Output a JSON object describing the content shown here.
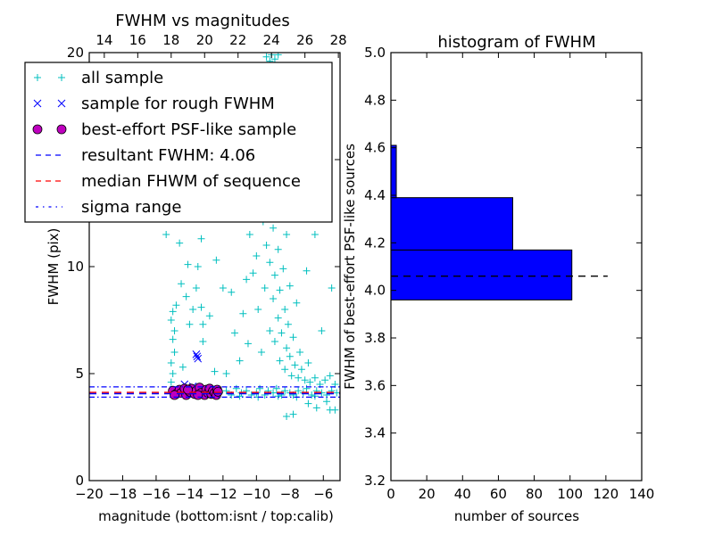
{
  "chart_data": [
    {
      "type": "scatter",
      "title": "FWHM vs magnitudes",
      "xlabel": "magnitude (bottom:isnt / top:calib)",
      "ylabel": "FWHM (pix)",
      "xlim": [
        -20,
        -5
      ],
      "ylim": [
        0,
        20
      ],
      "xticks": [
        -20,
        -18,
        -16,
        -14,
        -12,
        -10,
        -8,
        -6
      ],
      "xtick_labels": [
        "−20",
        "−18",
        "−16",
        "−14",
        "−12",
        "−10",
        "−8",
        "−6"
      ],
      "yticks": [
        0,
        5,
        10,
        15,
        20
      ],
      "ytick_labels": [
        "0",
        "5",
        "10",
        "15",
        "20"
      ],
      "top_xlim": [
        13.1,
        28.1
      ],
      "top_xticks": [
        14,
        16,
        18,
        20,
        22,
        24,
        26,
        28
      ],
      "top_xtick_labels": [
        "14",
        "16",
        "18",
        "20",
        "22",
        "24",
        "26",
        "28"
      ],
      "legend_position": "upper-left",
      "legend": [
        {
          "label": "all sample",
          "marker": "plus",
          "color": "#00bfbf"
        },
        {
          "label": "sample for rough FWHM",
          "marker": "x",
          "color": "#0000ff"
        },
        {
          "label": "best-effort PSF-like sample",
          "marker": "circle",
          "color": "#bf00bf"
        },
        {
          "label": "resultant FWHM: 4.06",
          "line": "dashed",
          "color": "#0000ff"
        },
        {
          "label": "median FHWM of sequence",
          "line": "dashed",
          "color": "#ff0000"
        },
        {
          "label": "sigma range",
          "line": "dashdot",
          "color": "#0000ff"
        }
      ],
      "hlines": {
        "resultant_fwhm": 4.06,
        "median_fwhm": 4.12,
        "sigma_range": [
          3.9,
          4.38
        ]
      },
      "series": [
        {
          "name": "all sample",
          "color": "#00bfbf",
          "marker": "plus",
          "points": [
            [
              -14.9,
              4.1
            ],
            [
              -14.6,
              4.2
            ],
            [
              -14.2,
              4.0
            ],
            [
              -13.8,
              4.3
            ],
            [
              -13.4,
              4.1
            ],
            [
              -13,
              4.2
            ],
            [
              -12.6,
              4.0
            ],
            [
              -12.2,
              4.1
            ],
            [
              -11.8,
              4.2
            ],
            [
              -11.5,
              4.0
            ],
            [
              -11.2,
              4.3
            ],
            [
              -10.9,
              4.1
            ],
            [
              -10.6,
              4.2
            ],
            [
              -10.3,
              4.0
            ],
            [
              -10,
              4.1
            ],
            [
              -9.8,
              4.3
            ],
            [
              -9.5,
              4.0
            ],
            [
              -9.3,
              4.2
            ],
            [
              -9,
              4.1
            ],
            [
              -8.8,
              4.3
            ],
            [
              -8.5,
              4.0
            ],
            [
              -8.3,
              4.2
            ],
            [
              -8,
              4.1
            ],
            [
              -7.8,
              4.0
            ],
            [
              -7.5,
              4.2
            ],
            [
              -7.2,
              4.1
            ],
            [
              -7,
              4.3
            ],
            [
              -6.7,
              4.0
            ],
            [
              -6.4,
              4.2
            ],
            [
              -6.1,
              4.1
            ],
            [
              -5.8,
              4.0
            ],
            [
              -5.5,
              4.2
            ],
            [
              -5.2,
              4.1
            ],
            [
              -11,
              3.95
            ],
            [
              -9.9,
              3.9
            ],
            [
              -8.7,
              3.95
            ],
            [
              -7.6,
              3.9
            ],
            [
              -6.5,
              3.95
            ],
            [
              -15.1,
              4.6
            ],
            [
              -15.0,
              5.0
            ],
            [
              -15.1,
              5.5
            ],
            [
              -14.9,
              6.0
            ],
            [
              -15.0,
              6.6
            ],
            [
              -14.9,
              7.0
            ],
            [
              -15.1,
              7.5
            ],
            [
              -15.0,
              7.9
            ],
            [
              -14.8,
              8.2
            ],
            [
              -15.4,
              11.5
            ],
            [
              -14.5,
              9.2
            ],
            [
              -14.2,
              8.6
            ],
            [
              -14.0,
              7.3
            ],
            [
              -13.8,
              8.0
            ],
            [
              -13.6,
              9.0
            ],
            [
              -13.3,
              8.1
            ],
            [
              -13.2,
              6.5
            ],
            [
              -12.8,
              7.7
            ],
            [
              -12.5,
              5.1
            ],
            [
              -14.1,
              10.1
            ],
            [
              -13.5,
              10.0
            ],
            [
              -14.6,
              11.1
            ],
            [
              -13.3,
              11.3
            ],
            [
              -12.4,
              10.3
            ],
            [
              -14.4,
              5.3
            ],
            [
              -13.2,
              7.3
            ],
            [
              -12.0,
              9.0
            ],
            [
              -11.8,
              5.0
            ],
            [
              -11.5,
              8.8
            ],
            [
              -11.3,
              6.9
            ],
            [
              -10.8,
              7.8
            ],
            [
              -10.5,
              6.4
            ],
            [
              -10.4,
              11.5
            ],
            [
              -10.2,
              9.7
            ],
            [
              -10.0,
              10.5
            ],
            [
              -9.9,
              8.0
            ],
            [
              -9.7,
              6.0
            ],
            [
              -9.6,
              12.1
            ],
            [
              -9.5,
              9.0
            ],
            [
              -9.4,
              11.0
            ],
            [
              -9.3,
              13.0
            ],
            [
              -9.2,
              7.0
            ],
            [
              -9.2,
              10.2
            ],
            [
              -9.1,
              14.1
            ],
            [
              -9.0,
              8.5
            ],
            [
              -9.0,
              11.8
            ],
            [
              -8.9,
              6.5
            ],
            [
              -8.9,
              9.6
            ],
            [
              -8.8,
              12.6
            ],
            [
              -8.8,
              15.3
            ],
            [
              -8.7,
              7.6
            ],
            [
              -8.7,
              10.8
            ],
            [
              -8.6,
              5.6
            ],
            [
              -8.6,
              8.9
            ],
            [
              -8.5,
              13.7
            ],
            [
              -8.5,
              6.9
            ],
            [
              -8.4,
              9.9
            ],
            [
              -8.4,
              16.2
            ],
            [
              -8.3,
              5.2
            ],
            [
              -8.3,
              8.0
            ],
            [
              -8.2,
              11.5
            ],
            [
              -8.2,
              6.2
            ],
            [
              -8.1,
              7.3
            ],
            [
              -8.0,
              5.8
            ],
            [
              -8.0,
              9.1
            ],
            [
              -7.9,
              4.9
            ],
            [
              -7.8,
              6.7
            ],
            [
              -7.7,
              5.4
            ],
            [
              -7.6,
              8.3
            ],
            [
              -7.5,
              4.8
            ],
            [
              -7.4,
              6.0
            ],
            [
              -7.3,
              5.2
            ],
            [
              -7.1,
              4.7
            ],
            [
              -6.9,
              5.5
            ],
            [
              -6.8,
              4.6
            ],
            [
              -6.5,
              4.8
            ],
            [
              -6.2,
              4.5
            ],
            [
              -5.9,
              4.7
            ],
            [
              -5.6,
              4.9
            ],
            [
              -5.3,
              4.5
            ],
            [
              -8.9,
              17.4
            ],
            [
              -9.3,
              18.5
            ],
            [
              -8.6,
              17.0
            ],
            [
              -9.1,
              15.9
            ],
            [
              -9.4,
              19.8
            ],
            [
              -9.1,
              19.9
            ],
            [
              -8.9,
              19.7
            ],
            [
              -8.7,
              19.9
            ],
            [
              -9.2,
              19.6
            ],
            [
              -10.3,
              12.6
            ],
            [
              -10.9,
              12.3
            ],
            [
              -7.6,
              12.3
            ],
            [
              -6.5,
              11.5
            ],
            [
              -5.5,
              9.0
            ],
            [
              -6.1,
              7.0
            ],
            [
              -7.0,
              9.8
            ],
            [
              -10.6,
              9.4
            ],
            [
              -11.0,
              5.6
            ],
            [
              -8.2,
              3.0
            ],
            [
              -7.8,
              3.1
            ],
            [
              -6.4,
              3.4
            ],
            [
              -5.6,
              3.3
            ],
            [
              -5.3,
              3.3
            ],
            [
              -6.9,
              3.6
            ],
            [
              -5.8,
              3.7
            ]
          ]
        },
        {
          "name": "sample for rough FWHM",
          "color": "#0000ff",
          "marker": "x",
          "points": [
            [
              -13.6,
              5.9
            ],
            [
              -13.5,
              5.7
            ],
            [
              -13.55,
              5.8
            ],
            [
              -14.3,
              4.5
            ],
            [
              -13.8,
              4.4
            ]
          ]
        },
        {
          "name": "best-effort PSF-like sample",
          "color": "#bf00bf",
          "marker": "circle",
          "points": [
            [
              -15.0,
              4.2
            ],
            [
              -14.8,
              4.05
            ],
            [
              -14.6,
              4.25
            ],
            [
              -14.5,
              4.1
            ],
            [
              -14.3,
              4.3
            ],
            [
              -14.2,
              4.0
            ],
            [
              -14.0,
              4.15
            ],
            [
              -13.9,
              4.3
            ],
            [
              -13.7,
              4.05
            ],
            [
              -13.6,
              4.2
            ],
            [
              -13.4,
              4.35
            ],
            [
              -13.3,
              4.1
            ],
            [
              -13.1,
              4.0
            ],
            [
              -13.0,
              4.25
            ],
            [
              -12.9,
              4.1
            ],
            [
              -12.8,
              4.3
            ],
            [
              -12.7,
              4.05
            ],
            [
              -12.6,
              4.2
            ],
            [
              -12.5,
              4.1
            ],
            [
              -12.4,
              4.0
            ],
            [
              -12.35,
              4.25
            ],
            [
              -14.9,
              4.0
            ],
            [
              -14.1,
              4.25
            ],
            [
              -13.5,
              4.0
            ],
            [
              -12.3,
              4.15
            ]
          ]
        }
      ]
    },
    {
      "type": "bar",
      "orientation": "horizontal",
      "title": "histogram of FWHM",
      "xlabel": "number of sources",
      "ylabel": "FWHM of best-effort PSF-like sources",
      "xlim": [
        0,
        140
      ],
      "ylim": [
        3.2,
        5.0
      ],
      "xticks": [
        0,
        20,
        40,
        60,
        80,
        100,
        120,
        140
      ],
      "xtick_labels": [
        "0",
        "20",
        "40",
        "60",
        "80",
        "100",
        "120",
        "140"
      ],
      "yticks": [
        3.2,
        3.4,
        3.6,
        3.8,
        4.0,
        4.2,
        4.4,
        4.6,
        4.8,
        5.0
      ],
      "ytick_labels": [
        "3.2",
        "3.4",
        "3.6",
        "3.8",
        "4.0",
        "4.2",
        "4.4",
        "4.6",
        "4.8",
        "5.0"
      ],
      "bars": [
        {
          "bin": [
            3.96,
            4.17
          ],
          "count": 101
        },
        {
          "bin": [
            4.17,
            4.39
          ],
          "count": 68
        },
        {
          "bin": [
            4.39,
            4.61
          ],
          "count": 3
        }
      ],
      "bar_color": "#0000ff",
      "hline": {
        "y": 4.06,
        "x_range": [
          0,
          121
        ],
        "style": "dashed",
        "color": "#000000"
      }
    }
  ]
}
